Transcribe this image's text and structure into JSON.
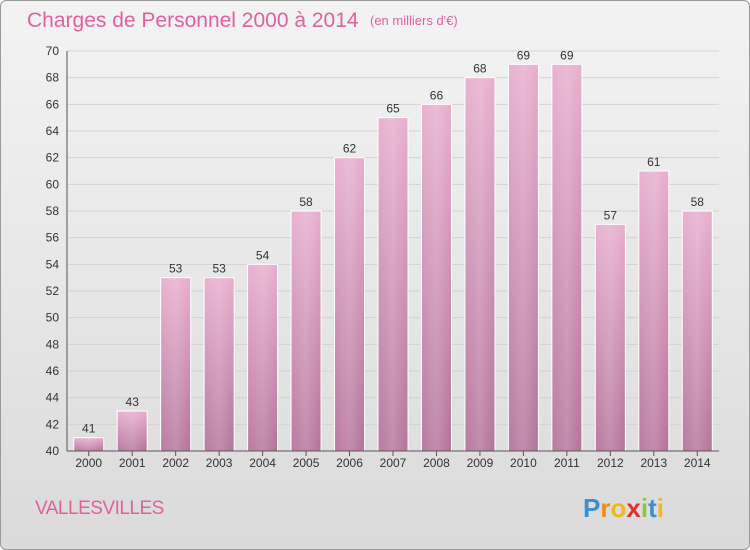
{
  "chart_data": {
    "type": "bar",
    "title": "Charges de Personnel 2000 à 2014",
    "subtitle": "(en milliers d'€)",
    "categories": [
      "2000",
      "2001",
      "2002",
      "2003",
      "2004",
      "2005",
      "2006",
      "2007",
      "2008",
      "2009",
      "2010",
      "2011",
      "2012",
      "2013",
      "2014"
    ],
    "values": [
      41,
      43,
      53,
      53,
      54,
      58,
      62,
      65,
      66,
      68,
      69,
      69,
      57,
      61,
      58
    ],
    "ylim": [
      40,
      70
    ],
    "yticks": [
      40,
      42,
      44,
      46,
      48,
      50,
      52,
      54,
      56,
      58,
      60,
      62,
      64,
      66,
      68,
      70
    ],
    "grid": true,
    "bar_color": "#c97aa6",
    "title_color": "#e3609e"
  },
  "place": "VALLESVILLES",
  "logo": {
    "letters": [
      "P",
      "r",
      "o",
      "x",
      "i",
      "t",
      "i"
    ],
    "colors": [
      "#3a8fd4",
      "#f08a1c",
      "#f0b81c",
      "#e02f2f",
      "#8cc63f",
      "#3a8fd4",
      "#f0b81c"
    ]
  }
}
